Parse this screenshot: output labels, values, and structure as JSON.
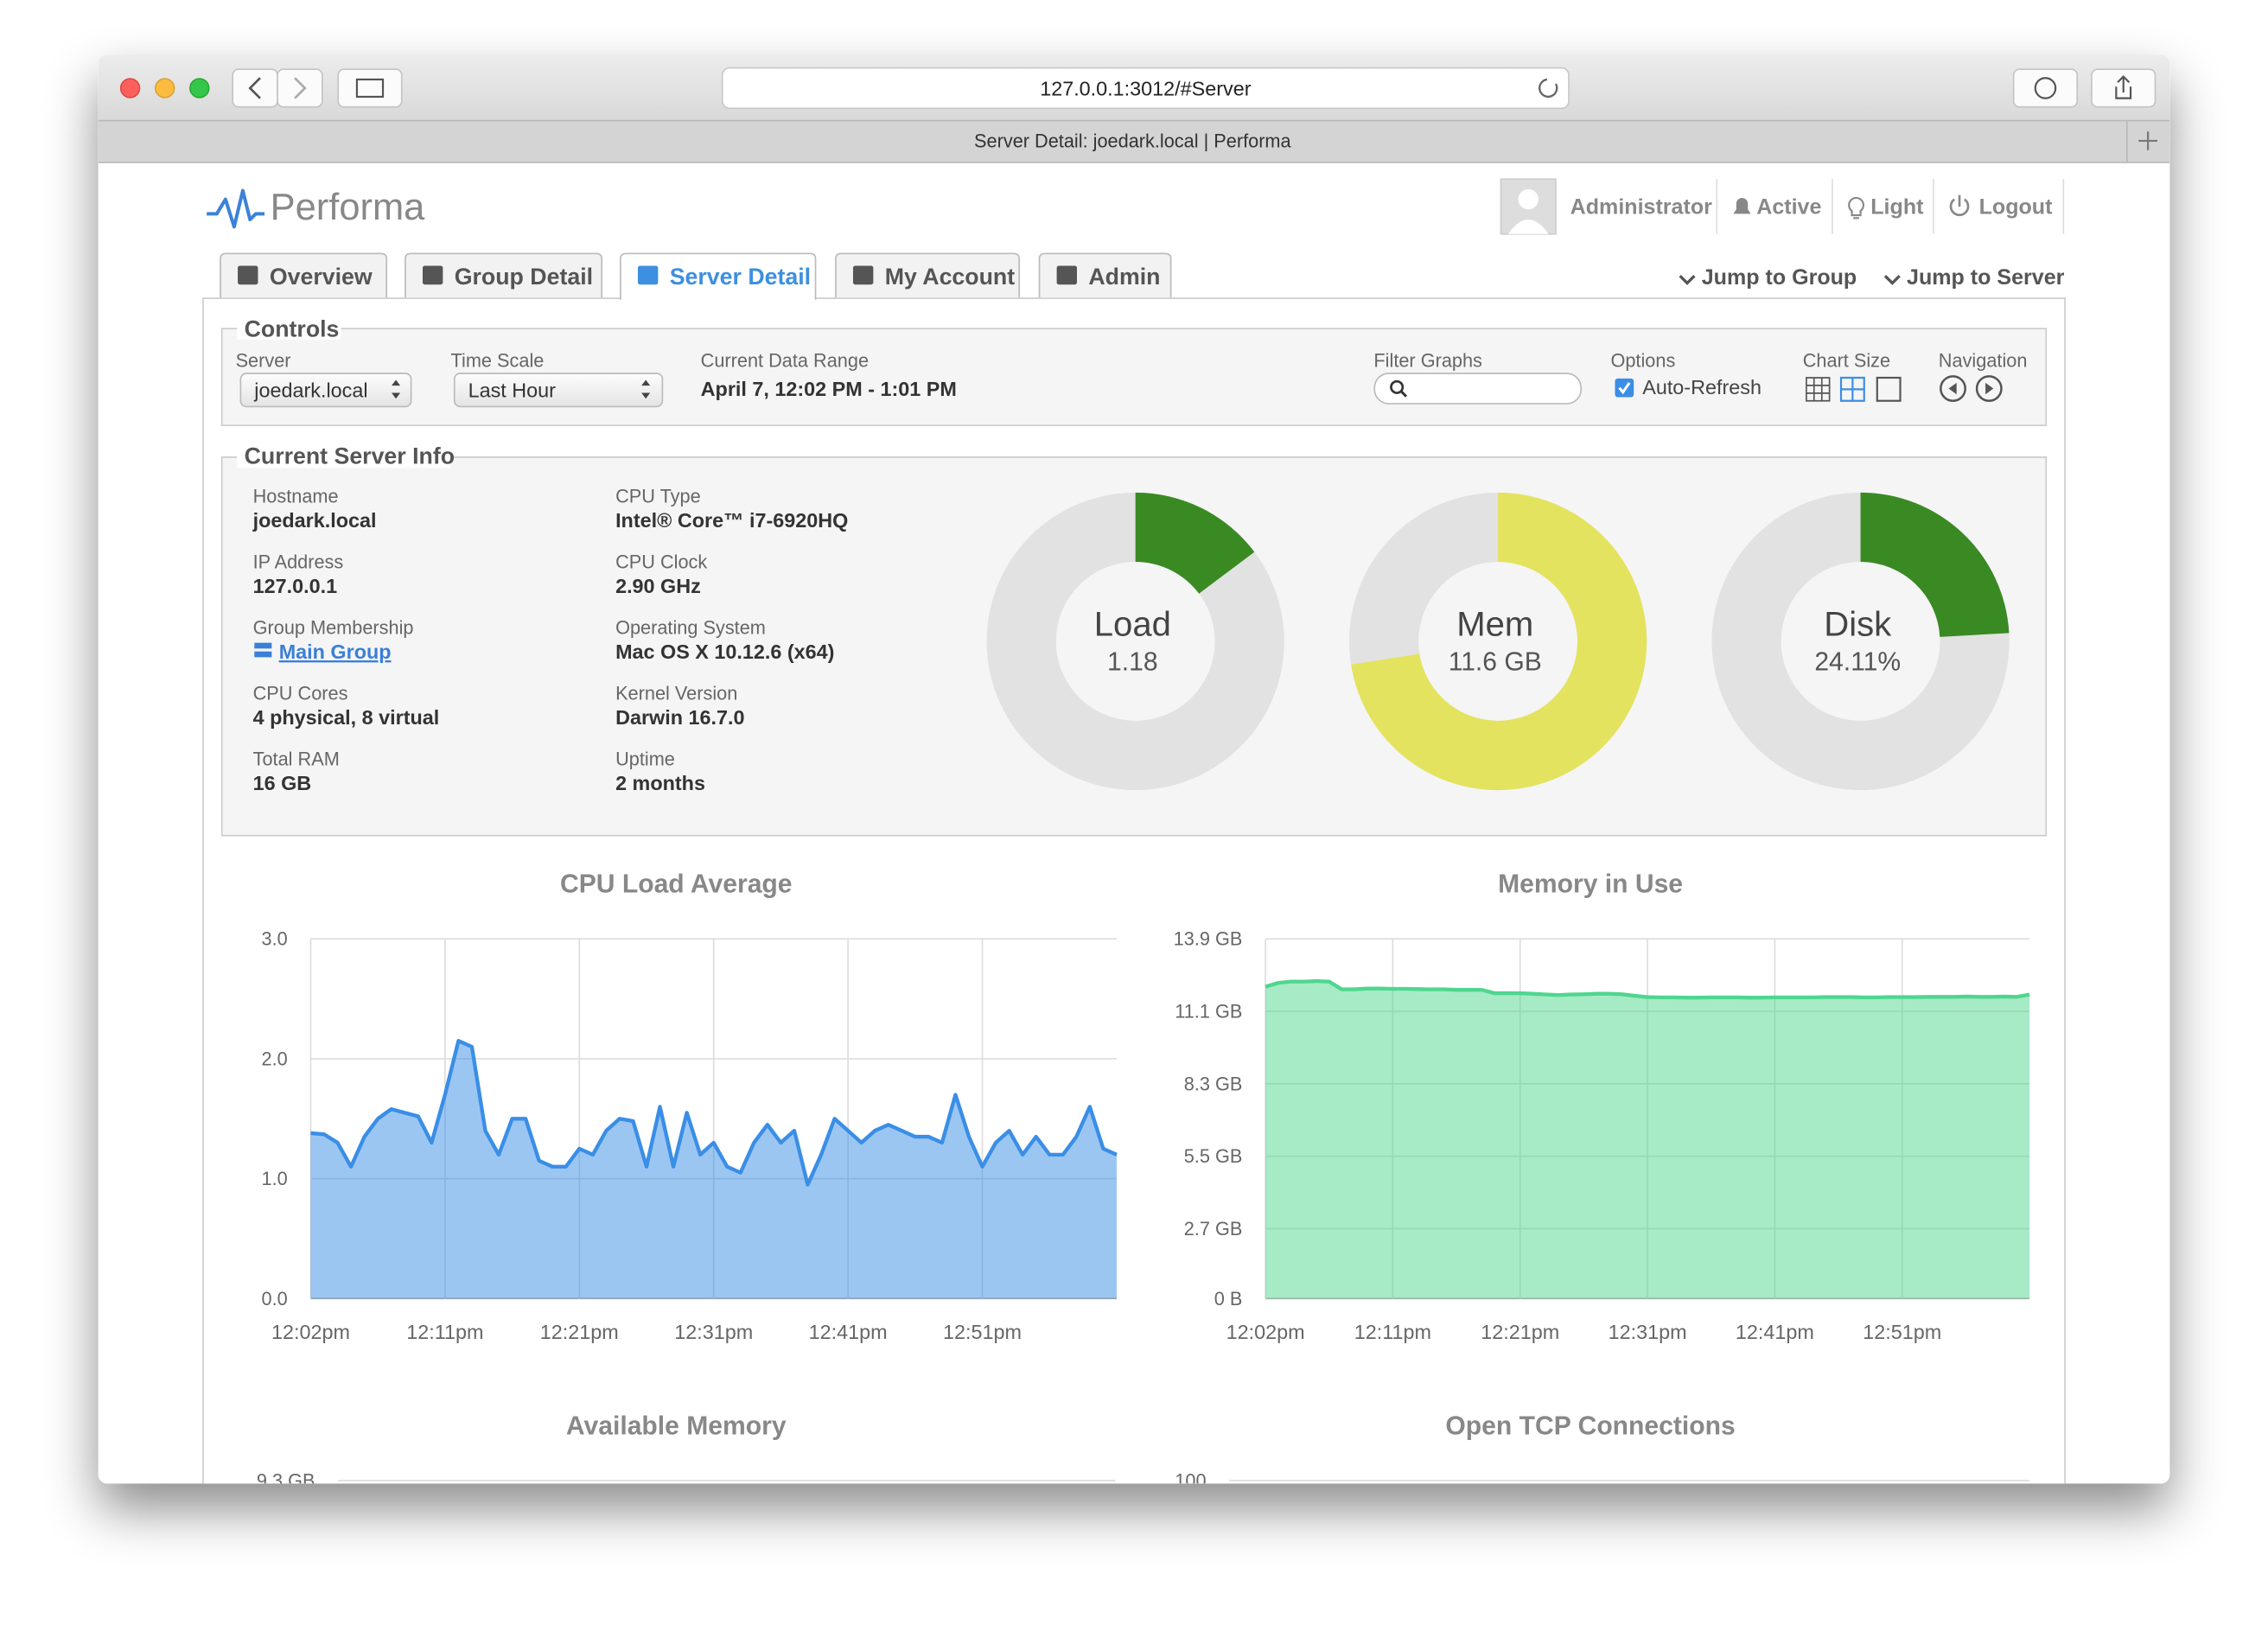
{
  "browser": {
    "url": "127.0.0.1:3012/#Server",
    "tab_title": "Server Detail: joedark.local | Performa"
  },
  "header": {
    "logo": "Performa",
    "user": "Administrator",
    "menu": [
      "Active",
      "Light",
      "Logout"
    ]
  },
  "tabs": [
    "Overview",
    "Group Detail",
    "Server Detail",
    "My Account",
    "Admin"
  ],
  "active_tab": 2,
  "jump_links": [
    "Jump to Group",
    "Jump to Server"
  ],
  "controls": {
    "legend": "Controls",
    "fields": [
      {
        "label": "Server",
        "value": "joedark.local"
      },
      {
        "label": "Time Scale",
        "value": "Last Hour"
      },
      {
        "label": "Current Data Range",
        "value": "April 7, 12:02 PM - 1:01 PM"
      },
      {
        "label": "Filter Graphs"
      },
      {
        "label": "Options",
        "value": "Auto-Refresh"
      },
      {
        "label": "Chart Size"
      },
      {
        "label": "Navigation"
      }
    ]
  },
  "server_info": {
    "legend": "Current Server Info",
    "items": [
      {
        "label": "Hostname",
        "value": "joedark.local"
      },
      {
        "label": "IP Address",
        "value": "127.0.0.1"
      },
      {
        "label": "Group Membership",
        "value": "Main Group"
      },
      {
        "label": "CPU Cores",
        "value": "4 physical, 8 virtual"
      },
      {
        "label": "Total RAM",
        "value": "16 GB"
      },
      {
        "label": "CPU Type",
        "value": "Intel® Core™ i7-6920HQ"
      },
      {
        "label": "CPU Clock",
        "value": "2.90 GHz"
      },
      {
        "label": "Operating System",
        "value": "Mac OS X 10.12.6 (x64)"
      },
      {
        "label": "Kernel Version",
        "value": "Darwin 16.7.0"
      },
      {
        "label": "Uptime",
        "value": "2 months"
      }
    ]
  },
  "gauges": [
    {
      "label": "Load",
      "value": 1.18,
      "value_label": "1.18",
      "max": 8,
      "color": "#3a8a23"
    },
    {
      "label": "Mem",
      "value": 11.6,
      "value_label": "11.6 GB",
      "max": 16,
      "color": "#e4e35f"
    },
    {
      "label": "Disk",
      "value": 24.11,
      "value_label": "24.11%",
      "max": 100,
      "color": "#3a8a23"
    }
  ],
  "chart_data": [
    {
      "type": "area",
      "title": "CPU Load Average",
      "x": [
        0,
        1,
        2,
        3,
        4,
        5,
        6,
        7,
        8,
        9,
        10,
        11,
        12,
        13,
        14,
        15,
        16,
        17,
        18,
        19,
        20,
        21,
        22,
        23,
        24,
        25,
        26,
        27,
        28,
        29,
        30,
        31,
        32,
        33,
        34,
        35,
        36,
        37,
        38,
        39,
        40,
        41,
        42,
        43,
        44,
        45,
        46,
        47,
        48,
        49,
        50,
        51,
        52,
        53,
        54,
        55,
        56,
        57,
        58,
        59,
        60
      ],
      "xlim": [
        0,
        60
      ],
      "xticks": [
        {
          "value": 0,
          "label": "12:02pm"
        },
        {
          "value": 10,
          "label": "12:11pm"
        },
        {
          "value": 20,
          "label": "12:21pm"
        },
        {
          "value": 30,
          "label": "12:31pm"
        },
        {
          "value": 40,
          "label": "12:41pm"
        },
        {
          "value": 50,
          "label": "12:51pm"
        }
      ],
      "ylim": [
        0,
        3
      ],
      "yticks": [
        {
          "value": 0,
          "label": "0.0"
        },
        {
          "value": 1,
          "label": "1.0"
        },
        {
          "value": 2,
          "label": "2.0"
        },
        {
          "value": 3,
          "label": "3.0"
        }
      ],
      "grid": true,
      "series": [
        {
          "color": "#3a8ee6",
          "values": [
            1.38,
            1.37,
            1.3,
            1.1,
            1.35,
            1.5,
            1.58,
            1.55,
            1.52,
            1.3,
            1.7,
            2.15,
            2.1,
            1.4,
            1.2,
            1.5,
            1.5,
            1.15,
            1.1,
            1.1,
            1.25,
            1.2,
            1.4,
            1.5,
            1.48,
            1.1,
            1.6,
            1.1,
            1.55,
            1.2,
            1.3,
            1.1,
            1.05,
            1.3,
            1.45,
            1.3,
            1.4,
            0.95,
            1.2,
            1.5,
            1.4,
            1.3,
            1.4,
            1.45,
            1.4,
            1.35,
            1.35,
            1.3,
            1.7,
            1.35,
            1.1,
            1.3,
            1.4,
            1.2,
            1.35,
            1.2,
            1.2,
            1.35,
            1.6,
            1.25,
            1.2
          ]
        }
      ]
    },
    {
      "type": "area",
      "title": "Memory in Use",
      "x": [
        0,
        1,
        2,
        3,
        4,
        5,
        6,
        7,
        8,
        9,
        10,
        11,
        12,
        13,
        14,
        15,
        16,
        17,
        18,
        19,
        20,
        21,
        22,
        23,
        24,
        25,
        26,
        27,
        28,
        29,
        30,
        31,
        32,
        33,
        34,
        35,
        36,
        37,
        38,
        39,
        40,
        41,
        42,
        43,
        44,
        45,
        46,
        47,
        48,
        49,
        50,
        51,
        52,
        53,
        54,
        55,
        56,
        57,
        58,
        59,
        60
      ],
      "xlim": [
        0,
        60
      ],
      "xticks": [
        {
          "value": 0,
          "label": "12:02pm"
        },
        {
          "value": 10,
          "label": "12:11pm"
        },
        {
          "value": 20,
          "label": "12:21pm"
        },
        {
          "value": 30,
          "label": "12:31pm"
        },
        {
          "value": 40,
          "label": "12:41pm"
        },
        {
          "value": 50,
          "label": "12:51pm"
        }
      ],
      "ylim": [
        0,
        13.9
      ],
      "yticks": [
        {
          "value": 0,
          "label": "0 B"
        },
        {
          "value": 2.7,
          "label": "2.7 GB"
        },
        {
          "value": 5.5,
          "label": "5.5 GB"
        },
        {
          "value": 8.3,
          "label": "8.3 GB"
        },
        {
          "value": 11.1,
          "label": "11.1 GB"
        },
        {
          "value": 13.9,
          "label": "13.9 GB"
        }
      ],
      "grid": true,
      "series": [
        {
          "color": "#4fd68e",
          "values": [
            12.05,
            12.2,
            12.25,
            12.25,
            12.27,
            12.25,
            11.95,
            11.95,
            11.98,
            11.98,
            11.97,
            11.97,
            11.96,
            11.95,
            11.95,
            11.93,
            11.93,
            11.93,
            11.8,
            11.8,
            11.8,
            11.78,
            11.75,
            11.73,
            11.75,
            11.76,
            11.78,
            11.78,
            11.76,
            11.7,
            11.65,
            11.64,
            11.64,
            11.63,
            11.63,
            11.64,
            11.64,
            11.64,
            11.63,
            11.63,
            11.64,
            11.64,
            11.64,
            11.64,
            11.65,
            11.65,
            11.65,
            11.64,
            11.64,
            11.65,
            11.65,
            11.65,
            11.66,
            11.66,
            11.66,
            11.67,
            11.66,
            11.66,
            11.67,
            11.66,
            11.75
          ]
        }
      ]
    },
    {
      "type": "area",
      "title": "Available Memory",
      "ylim": [
        0,
        9.3
      ],
      "yticks": [
        {
          "value": 9.3,
          "label": "9.3 GB"
        }
      ],
      "grid": true
    },
    {
      "type": "line",
      "title": "Open TCP Connections",
      "ylim": [
        0,
        100
      ],
      "yticks": [
        100
      ],
      "grid": true
    }
  ]
}
